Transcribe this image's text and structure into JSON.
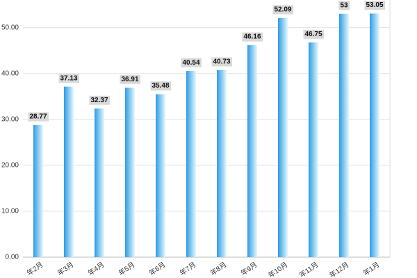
{
  "chart_data": {
    "type": "bar",
    "categories": [
      "年2月",
      "年3月",
      "年4月",
      "年5月",
      "年6月",
      "年7月",
      "年8月",
      "年9月",
      "年10月",
      "年11月",
      "年12月",
      "年1月"
    ],
    "values": [
      28.77,
      37.13,
      32.37,
      36.91,
      35.48,
      40.54,
      40.73,
      46.16,
      52.09,
      46.75,
      53,
      53.05
    ],
    "color": "#2f9be4",
    "ylim": [
      0,
      56
    ],
    "yticks": [
      {
        "value": 0,
        "label": "0.00"
      },
      {
        "value": 10,
        "label": "10.00"
      },
      {
        "value": 20,
        "label": "20.00"
      },
      {
        "value": 30,
        "label": "30.00"
      },
      {
        "value": 40,
        "label": "40.00"
      },
      {
        "value": 50,
        "label": "50.00"
      }
    ],
    "grid": true
  }
}
